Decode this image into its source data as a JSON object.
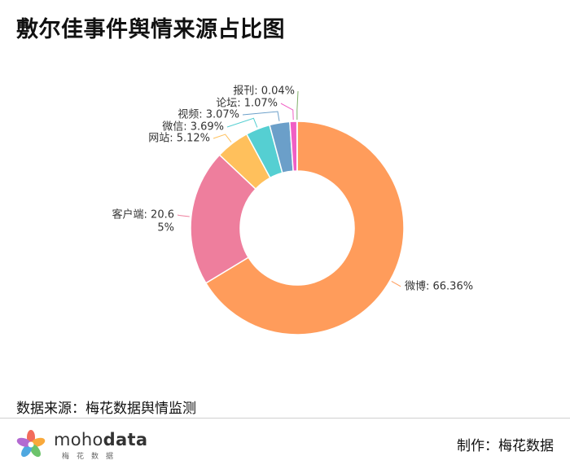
{
  "header": {
    "title": "敷尔佳事件舆情来源占比图"
  },
  "chart_data": {
    "type": "pie",
    "style": "donut",
    "title": "敷尔佳事件舆情来源占比图",
    "legend": "none",
    "slices": [
      {
        "name": "微博",
        "value": 66.36,
        "color": "#FF9C5B",
        "label": "微博: 66.36%"
      },
      {
        "name": "客户端",
        "value": 20.65,
        "color": "#EE7E9D",
        "label": "客户端: 20.65%"
      },
      {
        "name": "网站",
        "value": 5.12,
        "color": "#FFC05C",
        "label": "网站: 5.12%"
      },
      {
        "name": "微信",
        "value": 3.69,
        "color": "#55CFD2",
        "label": "微信: 3.69%"
      },
      {
        "name": "视频",
        "value": 3.07,
        "color": "#6B9FC9",
        "label": "视频: 3.07%"
      },
      {
        "name": "论坛",
        "value": 1.07,
        "color": "#F05FC4",
        "label": "论坛: 1.07%"
      },
      {
        "name": "报刊",
        "value": 0.04,
        "color": "#7FAF6A",
        "label": "报刊: 0.04%"
      }
    ]
  },
  "footer": {
    "source": "数据来源：梅花数据舆情监测",
    "maker": "制作：梅花数据",
    "logo_text_regular": "moho",
    "logo_text_bold": "data",
    "logo_sub": "梅花数据"
  }
}
